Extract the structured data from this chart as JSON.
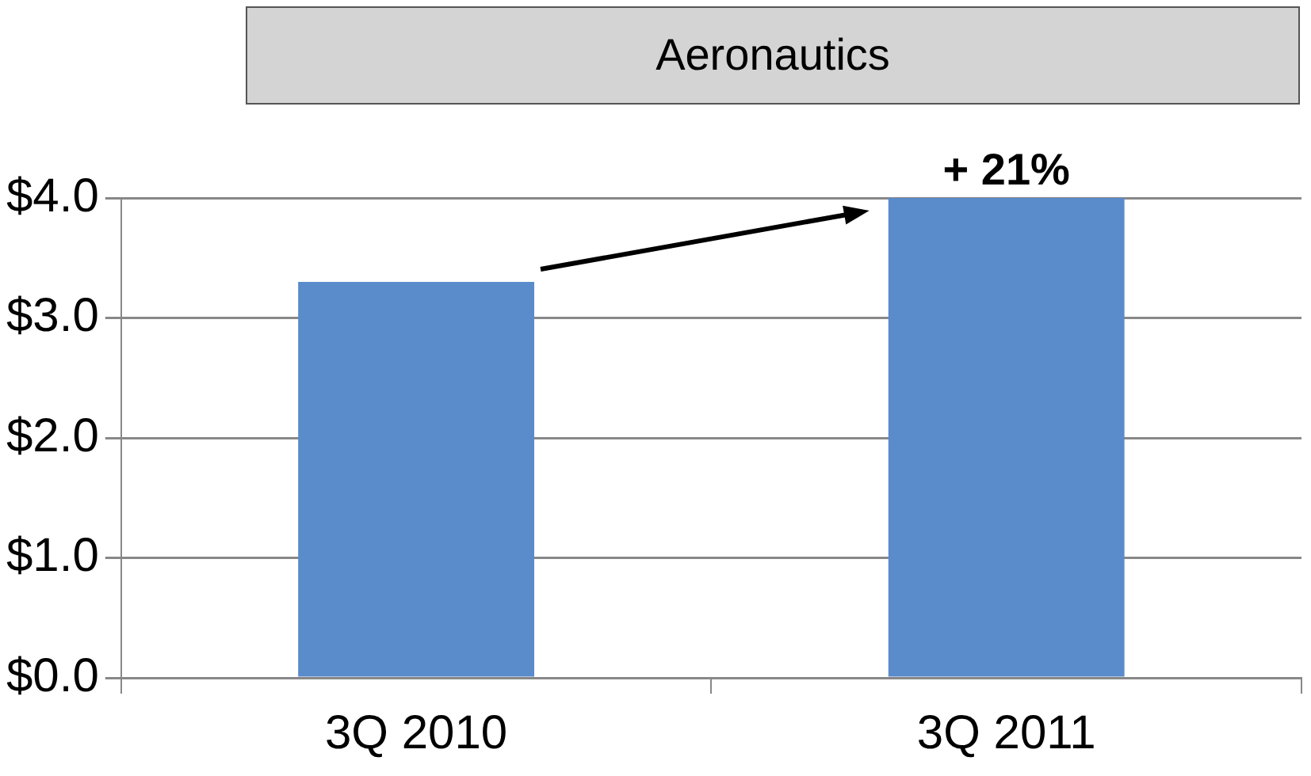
{
  "chart_data": {
    "type": "bar",
    "title": "Aeronautics",
    "categories": [
      "3Q 2010",
      "3Q 2011"
    ],
    "series": [
      {
        "color": "#5a8bcb",
        "values": [
          3.3,
          4.0
        ]
      }
    ],
    "ylim": [
      0,
      4
    ],
    "yticks": [
      {
        "value": 0,
        "label": "$0.0"
      },
      {
        "value": 1,
        "label": "$1.0"
      },
      {
        "value": 2,
        "label": "$2.0"
      },
      {
        "value": 3,
        "label": "$3.0"
      },
      {
        "value": 4,
        "label": "$4.0"
      }
    ],
    "grid": "y",
    "legend": false,
    "annotations": [
      {
        "text": "+ 21%",
        "x": "3Q 2011",
        "y": 4.0
      }
    ]
  }
}
